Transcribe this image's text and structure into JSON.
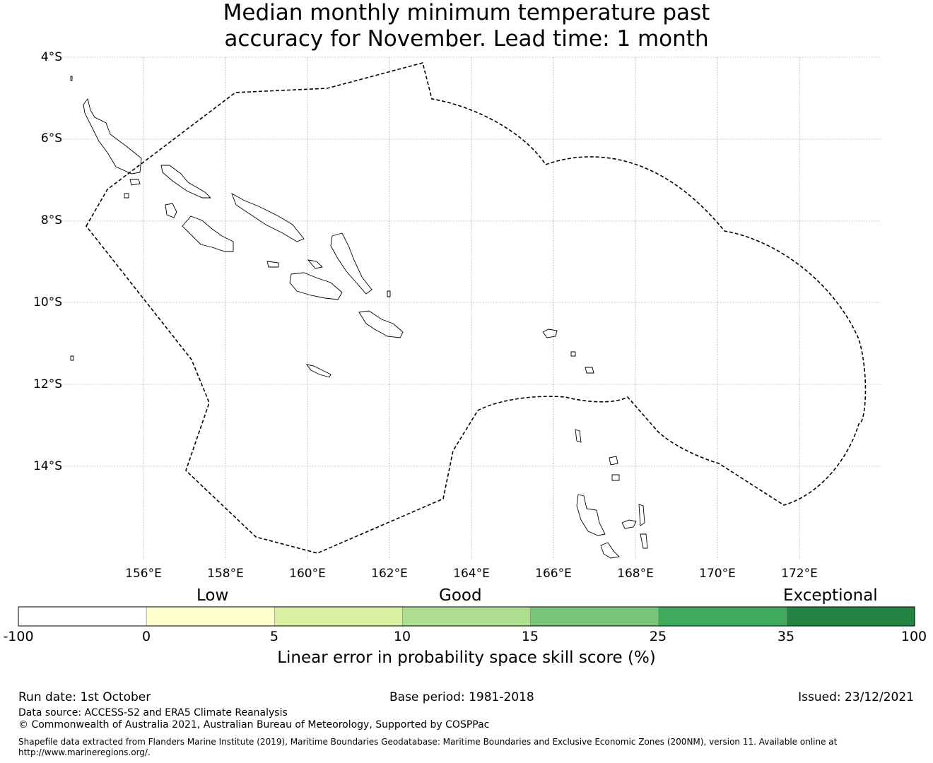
{
  "title": {
    "line1": "Median monthly minimum temperature past",
    "line2": "accuracy for November. Lead time: 1 month"
  },
  "map": {
    "lat_labels": [
      "4°S",
      "6°S",
      "8°S",
      "10°S",
      "12°S",
      "14°S"
    ],
    "lon_labels": [
      "156°E",
      "158°E",
      "160°E",
      "162°E",
      "164°E",
      "166°E",
      "168°E",
      "170°E",
      "172°E"
    ],
    "boundary_style": "dashed",
    "land_outline_color": "#000000"
  },
  "colorbar": {
    "categories": [
      "Low",
      "Good",
      "Exceptional"
    ],
    "ticks": [
      "-100",
      "0",
      "5",
      "10",
      "15",
      "25",
      "35",
      "100"
    ],
    "colors": [
      "#ffffff",
      "#ffffcc",
      "#d9f0a3",
      "#addd8e",
      "#78c679",
      "#41ab5d",
      "#238443"
    ],
    "label": "Linear error in probability space skill score (%)"
  },
  "footer": {
    "run_date": "Run date: 1st October",
    "base_period": "Base period: 1981-2018",
    "issued": "Issued: 23/12/2021",
    "data_source": "Data source: ACCESS-S2 and ERA5 Climate Reanalysis",
    "copyright": "© Commonwealth of Australia 2021, Australian Bureau of Meteorology, Supported by COSPPac",
    "shapefile": "Shapefile data extracted from Flanders Marine Institute (2019), Maritime Boundaries Geodatabase: Maritime Boundaries and Exclusive Economic Zones (200NM), version 11. Available online at http://www.marineregions.org/."
  }
}
